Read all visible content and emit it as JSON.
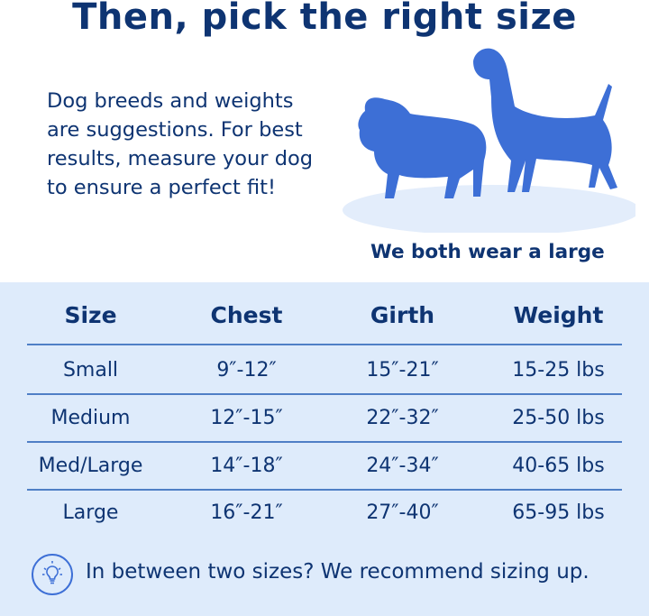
{
  "title": "Then, pick the right size",
  "intro_lines": [
    "Dog breeds and weights",
    "are suggestions. For best",
    "results, measure your dog",
    "to ensure a perfect fit!"
  ],
  "caption": "We both wear a large",
  "colors": {
    "navy": "#0e3472",
    "dog_blue": "#3d6fd6",
    "panel_bg": "#deebfb"
  },
  "table": {
    "headers": [
      "Size",
      "Chest",
      "Girth",
      "Weight"
    ],
    "rows": [
      [
        "Small",
        "9″-12″",
        "15″-21″",
        "15-25 lbs"
      ],
      [
        "Medium",
        "12″-15″",
        "22″-32″",
        "25-50 lbs"
      ],
      [
        "Med/Large",
        "14″-18″",
        "24″-34″",
        "40-65 lbs"
      ],
      [
        "Large",
        "16″-21″",
        "27″-40″",
        "65-95 lbs"
      ]
    ]
  },
  "tip": {
    "icon": "lightbulb-icon",
    "text": "In between two sizes? We recommend sizing up."
  }
}
